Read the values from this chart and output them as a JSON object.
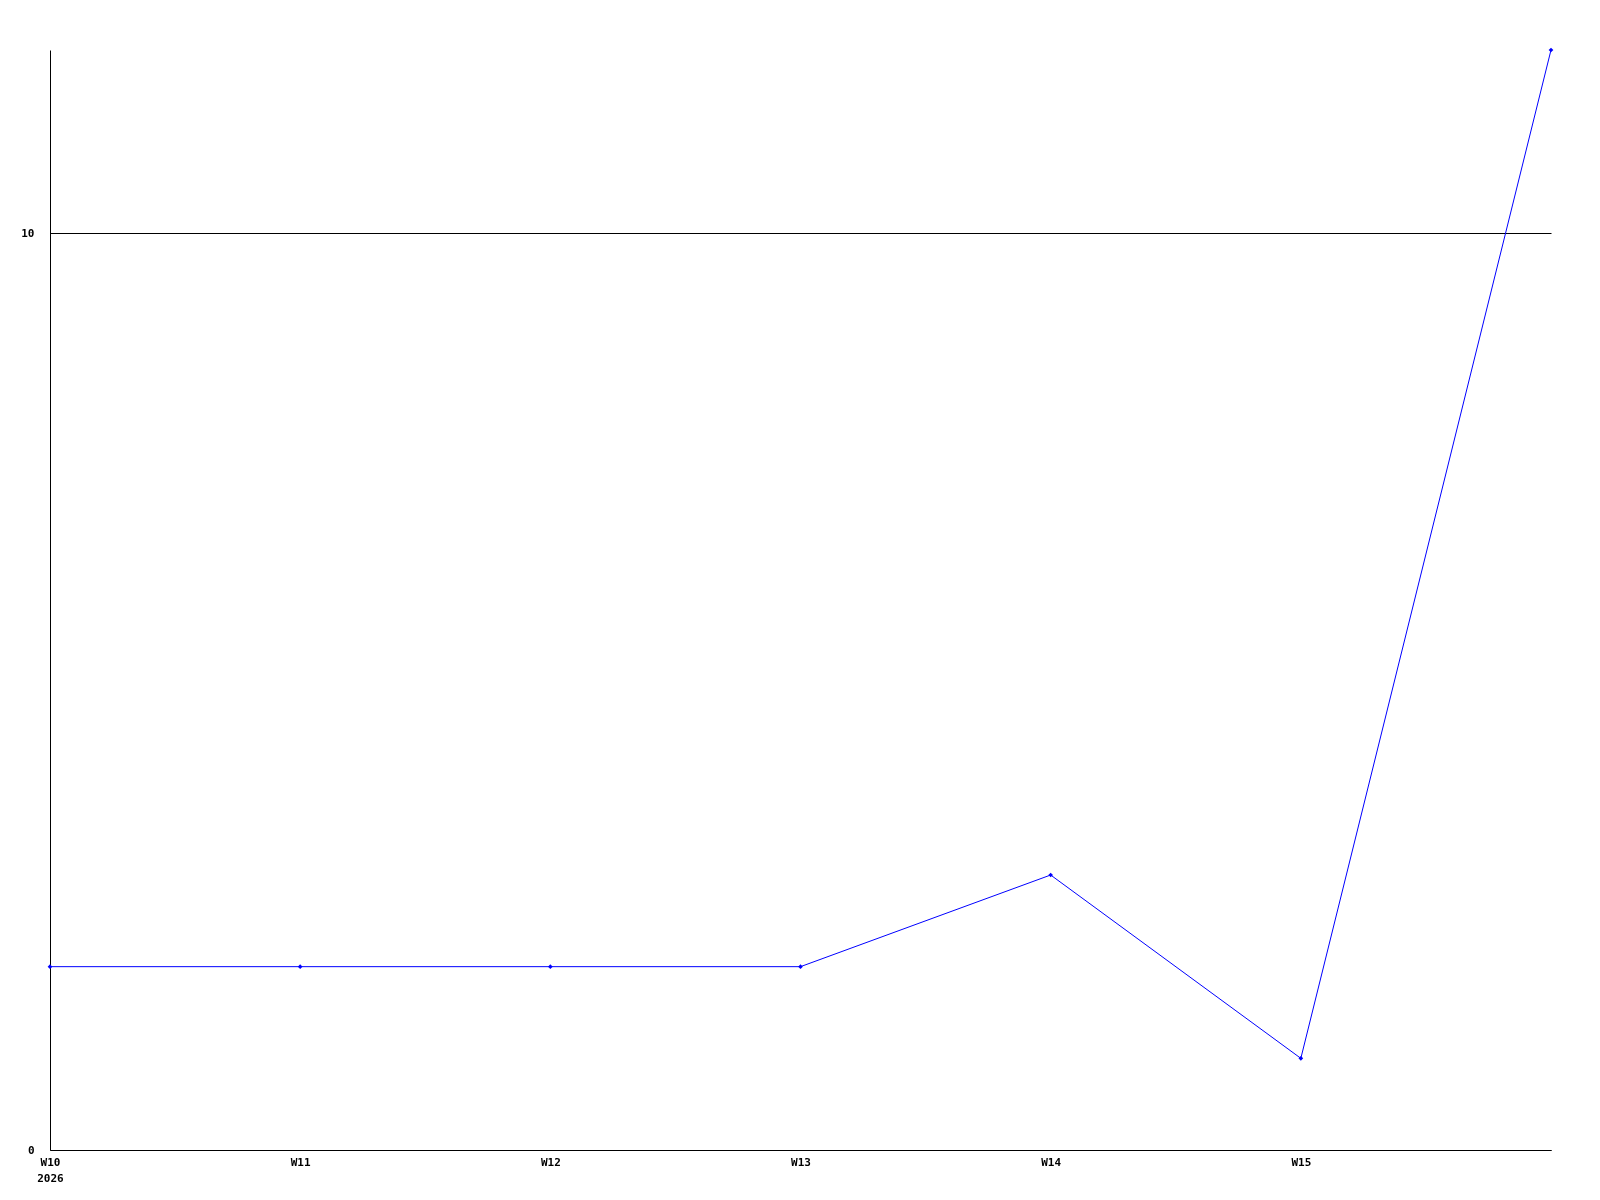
{
  "chart_data": {
    "type": "line",
    "categories": [
      "W10\n2026",
      "W11",
      "W12",
      "W13",
      "W14",
      "W15",
      null
    ],
    "series": [
      {
        "color": "#0000ff",
        "values": [
          2,
          2,
          2,
          2,
          3,
          1,
          12
        ]
      }
    ],
    "ylim": [
      0,
      12
    ],
    "yticks": [
      0,
      10
    ],
    "grid": "y",
    "marker": "diamond",
    "line_style": "solid"
  }
}
